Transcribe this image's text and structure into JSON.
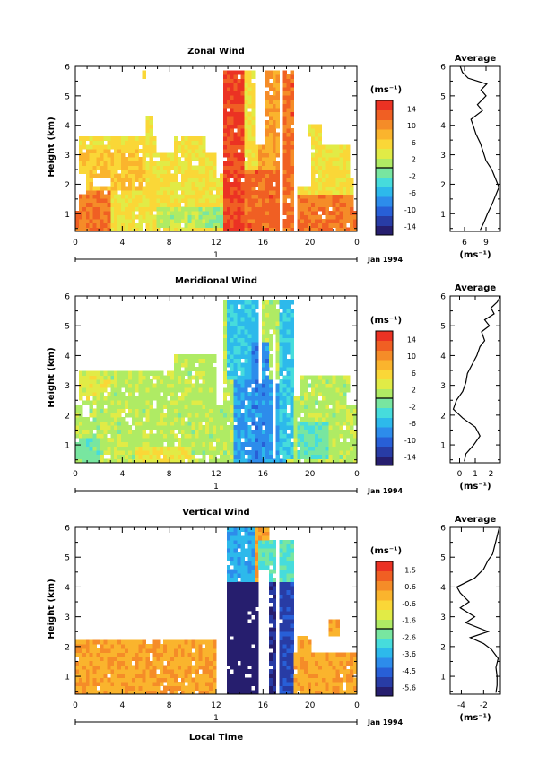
{
  "chart_data": [
    {
      "type": "heatmap",
      "title": "Zonal Wind",
      "xlabel": "",
      "ylabel": "Height (km)",
      "x_ticks": [
        "0",
        "4",
        "8",
        "12",
        "16",
        "20",
        "0"
      ],
      "y_ticks": [
        "1",
        "2",
        "3",
        "4",
        "5",
        "6"
      ],
      "date_marker": "1",
      "date_label": "Jan 1994",
      "xlim": [
        0,
        24
      ],
      "ylim": [
        0.4,
        6
      ],
      "colorbar": {
        "unit": "(ms⁻¹)",
        "ticks": [
          "14",
          "10",
          "6",
          "2",
          "-2",
          "-6",
          "-10",
          "-14"
        ],
        "range": [
          -16,
          16
        ]
      },
      "field": {
        "valid": [
          [
            0.0,
            24.0,
            0.4,
            1.1
          ],
          [
            0.4,
            23.7,
            1.1,
            1.7
          ],
          [
            0.8,
            23.7,
            1.7,
            2.3
          ],
          [
            0.3,
            7.0,
            2.3,
            3.6
          ],
          [
            5.8,
            12.0,
            2.3,
            3.0
          ],
          [
            12.5,
            18.6,
            0.4,
            5.8
          ],
          [
            18.0,
            23.5,
            1.7,
            3.4
          ],
          [
            19.7,
            21.0,
            3.4,
            4.1
          ],
          [
            8.5,
            11.0,
            2.9,
            3.6
          ],
          [
            6.1,
            6.5,
            3.4,
            4.3
          ],
          [
            5.7,
            6.1,
            5.6,
            5.8
          ]
        ],
        "gaps": [
          [
            15.3,
            16.3,
            3.4,
            5.8
          ],
          [
            17.3,
            17.7,
            0.4,
            5.8
          ],
          [
            18.6,
            19.0,
            0.4,
            5.8
          ],
          [
            19.0,
            20.0,
            2.0,
            3.6
          ],
          [
            1.5,
            3.0,
            1.9,
            2.2
          ]
        ],
        "base": {
          "value": 5.0,
          "jitter": 1.8
        },
        "kernels": [
          {
            "x0": 12.6,
            "x1": 14.5,
            "y0": 0.4,
            "y1": 5.8,
            "value": 14
          },
          {
            "x0": 14.5,
            "x1": 17.3,
            "y0": 0.4,
            "y1": 2.5,
            "value": 12
          },
          {
            "x0": 15.5,
            "x1": 17.3,
            "y0": 2.5,
            "y1": 5.8,
            "value": 9
          },
          {
            "x0": 17.7,
            "x1": 18.6,
            "y0": 0.4,
            "y1": 5.8,
            "value": 12
          },
          {
            "x0": 19.0,
            "x1": 24.0,
            "y0": 0.4,
            "y1": 1.7,
            "value": 11
          },
          {
            "x0": 0.0,
            "x1": 3.0,
            "y0": 0.4,
            "y1": 1.8,
            "value": 11
          },
          {
            "x0": 0.4,
            "x1": 6.0,
            "y0": 1.8,
            "y1": 3.2,
            "value": 7
          },
          {
            "x0": 7.0,
            "x1": 11.0,
            "y0": 0.6,
            "y1": 1.3,
            "value": 1.5
          },
          {
            "x0": 11.0,
            "x1": 12.5,
            "y0": 0.5,
            "y1": 1.2,
            "value": 0
          }
        ]
      },
      "profile": {
        "title": "Average",
        "xlabel": "(ms⁻¹)",
        "x_ticks": [
          "6",
          "9"
        ],
        "xlim": [
          4,
          11
        ],
        "height": [
          0.45,
          0.7,
          1.0,
          1.3,
          1.6,
          1.9,
          2.2,
          2.5,
          2.8,
          3.1,
          3.4,
          3.7,
          4.0,
          4.2,
          4.5,
          4.7,
          5.0,
          5.2,
          5.4,
          5.6,
          5.8,
          6.0
        ],
        "value": [
          8.2,
          8.7,
          9.2,
          9.8,
          10.3,
          10.8,
          10.3,
          9.8,
          9.0,
          8.6,
          8.2,
          7.6,
          7.2,
          6.9,
          8.5,
          7.8,
          9.0,
          8.3,
          9.1,
          6.5,
          5.7,
          5.4
        ]
      }
    },
    {
      "type": "heatmap",
      "title": "Meridional Wind",
      "xlabel": "",
      "ylabel": "Height (km)",
      "x_ticks": [
        "0",
        "4",
        "8",
        "12",
        "16",
        "20",
        "0"
      ],
      "y_ticks": [
        "1",
        "2",
        "3",
        "4",
        "5",
        "6"
      ],
      "date_marker": "1",
      "date_label": "Jan 1994",
      "xlim": [
        0,
        24
      ],
      "ylim": [
        0.4,
        6
      ],
      "colorbar": {
        "unit": "(ms⁻¹)",
        "ticks": [
          "14",
          "10",
          "6",
          "2",
          "-2",
          "-6",
          "-10",
          "-14"
        ],
        "range": [
          -16,
          16
        ]
      },
      "field": {
        "valid": [
          [
            0.0,
            24.0,
            0.4,
            2.3
          ],
          [
            0.4,
            12.0,
            2.3,
            3.5
          ],
          [
            8.5,
            12.0,
            3.2,
            4.0
          ],
          [
            12.5,
            18.6,
            0.4,
            5.8
          ],
          [
            18.0,
            23.0,
            1.7,
            2.8
          ],
          [
            19.0,
            23.5,
            2.8,
            3.4
          ],
          [
            12.9,
            14.0,
            4.3,
            4.6
          ]
        ],
        "gaps": [
          [
            15.7,
            16.0,
            3.0,
            5.8
          ],
          [
            18.6,
            19.2,
            2.6,
            5.8
          ],
          [
            0.6,
            1.2,
            1.9,
            2.3
          ],
          [
            16.7,
            17.2,
            0.6,
            4.7
          ]
        ],
        "base": {
          "value": 1.5,
          "jitter": 1.6
        },
        "kernels": [
          {
            "x0": 13.5,
            "x1": 18.0,
            "y0": 0.4,
            "y1": 3.2,
            "value": -7
          },
          {
            "x0": 13.0,
            "x1": 15.5,
            "y0": 3.2,
            "y1": 5.8,
            "value": -5
          },
          {
            "x0": 15.0,
            "x1": 16.5,
            "y0": 0.4,
            "y1": 4.5,
            "value": -8
          },
          {
            "x0": 17.5,
            "x1": 18.6,
            "y0": 0.6,
            "y1": 5.8,
            "value": -5
          },
          {
            "x0": 19.0,
            "x1": 21.5,
            "y0": 0.6,
            "y1": 1.8,
            "value": -2
          },
          {
            "x0": 0.0,
            "x1": 2.0,
            "y0": 0.4,
            "y1": 1.2,
            "value": -1
          },
          {
            "x0": 5.0,
            "x1": 10.0,
            "y0": 0.4,
            "y1": 1.0,
            "value": 4.5
          },
          {
            "x0": 0.4,
            "x1": 3.0,
            "y0": 2.5,
            "y1": 3.4,
            "value": 3.5
          }
        ]
      },
      "profile": {
        "title": "Average",
        "xlabel": "(ms⁻¹)",
        "x_ticks": [
          "0",
          "1",
          "2"
        ],
        "xlim": [
          -0.6,
          2.6
        ],
        "height": [
          0.45,
          0.7,
          1.0,
          1.3,
          1.6,
          1.9,
          2.2,
          2.5,
          2.8,
          3.1,
          3.4,
          3.7,
          4.0,
          4.3,
          4.5,
          4.8,
          5.0,
          5.2,
          5.4,
          5.6,
          5.8,
          6.0
        ],
        "value": [
          0.3,
          0.4,
          0.9,
          1.3,
          1.0,
          0.2,
          -0.4,
          -0.2,
          0.2,
          0.4,
          0.5,
          0.8,
          1.1,
          1.3,
          1.6,
          1.4,
          1.9,
          1.6,
          2.2,
          2.0,
          2.4,
          2.6
        ]
      }
    },
    {
      "type": "heatmap",
      "title": "Vertical Wind",
      "xlabel": "Local Time",
      "ylabel": "Height (km)",
      "x_ticks": [
        "0",
        "4",
        "8",
        "12",
        "16",
        "20",
        "0"
      ],
      "y_ticks": [
        "1",
        "2",
        "3",
        "4",
        "5",
        "6"
      ],
      "date_marker": "1",
      "date_label": "Jan 1994",
      "xlim": [
        0,
        24
      ],
      "ylim": [
        0.4,
        6
      ],
      "colorbar": {
        "unit": "(ms⁻¹)",
        "ticks": [
          "1.5",
          "0.6",
          "-0.6",
          "-1.6",
          "-2.6",
          "-3.6",
          "-4.5",
          "-5.6"
        ],
        "range": [
          -6,
          2
        ]
      },
      "field": {
        "valid": [
          [
            0.0,
            12.0,
            0.4,
            2.2
          ],
          [
            12.3,
            18.6,
            0.4,
            6.0
          ],
          [
            18.6,
            24.0,
            0.4,
            1.8
          ],
          [
            19.0,
            20.0,
            1.8,
            2.3
          ],
          [
            21.6,
            22.4,
            2.4,
            2.9
          ]
        ],
        "gaps": [
          [
            15.6,
            16.6,
            0.4,
            4.6
          ],
          [
            17.2,
            17.5,
            0.4,
            5.6
          ],
          [
            12.3,
            12.8,
            0.4,
            6.0
          ],
          [
            16.6,
            18.6,
            5.6,
            6.0
          ]
        ],
        "base": {
          "value": 0.2,
          "jitter": 0.4
        },
        "kernels": [
          {
            "x0": 12.8,
            "x1": 15.6,
            "y0": 0.4,
            "y1": 4.2,
            "value": -5.9
          },
          {
            "x0": 13.0,
            "x1": 15.2,
            "y0": 4.2,
            "y1": 6.0,
            "value": -3.6
          },
          {
            "x0": 16.6,
            "x1": 17.2,
            "y0": 0.4,
            "y1": 4.4,
            "value": -5.5
          },
          {
            "x0": 17.5,
            "x1": 18.6,
            "y0": 0.4,
            "y1": 4.3,
            "value": -5.0
          },
          {
            "x0": 15.5,
            "x1": 18.6,
            "y0": 4.2,
            "y1": 5.6,
            "value": -2.6
          }
        ]
      },
      "profile": {
        "title": "Average",
        "xlabel": "(ms⁻¹)",
        "x_ticks": [
          "-4",
          "-2"
        ],
        "xlim": [
          -5,
          -0.5
        ],
        "height": [
          0.45,
          0.7,
          1.0,
          1.3,
          1.6,
          1.9,
          2.1,
          2.3,
          2.5,
          2.8,
          3.0,
          3.3,
          3.5,
          3.8,
          4.0,
          4.3,
          4.6,
          4.9,
          5.1,
          5.4,
          5.7,
          6.0
        ],
        "value": [
          -0.9,
          -0.8,
          -0.8,
          -0.9,
          -0.7,
          -1.3,
          -2.0,
          -3.2,
          -1.6,
          -3.6,
          -2.8,
          -4.1,
          -3.3,
          -4.1,
          -4.4,
          -2.8,
          -2.0,
          -1.6,
          -1.2,
          -1.0,
          -0.8,
          -0.6
        ]
      }
    }
  ]
}
